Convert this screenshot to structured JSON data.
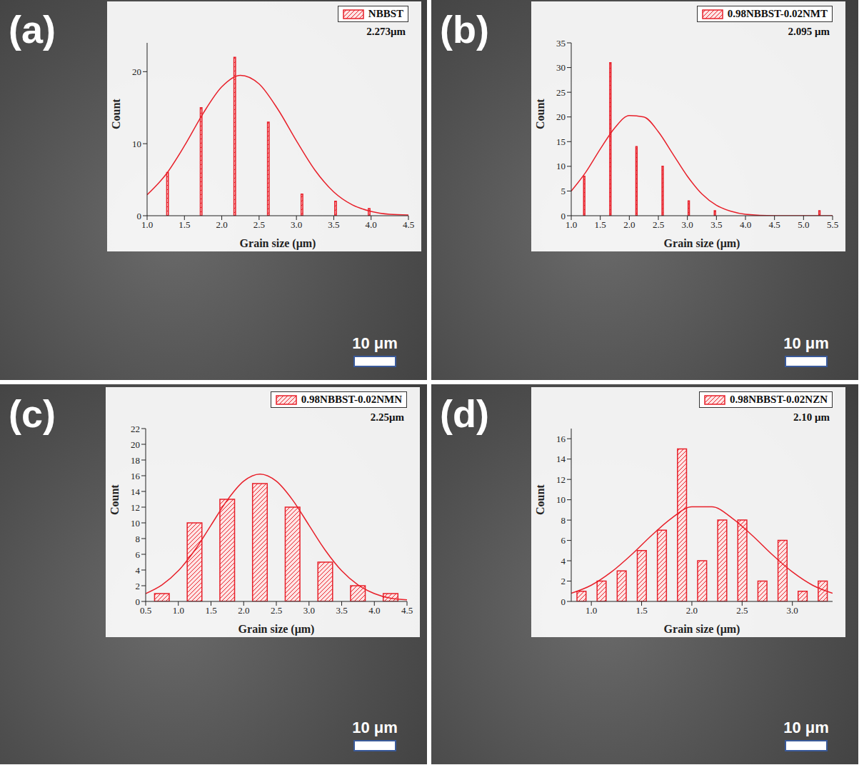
{
  "chart_data": [
    {
      "type": "histogram",
      "title": "(a)",
      "legend": "upper right",
      "annotation": "2.273μm",
      "scale_bar": "10 μm",
      "xlabel": "Grain size (μm)",
      "ylabel": "Count",
      "xlim": [
        1.0,
        4.5
      ],
      "xticks": [
        {
          "value": 1,
          "label": "1.0"
        },
        1.5,
        {
          "value": 2,
          "label": "2.0"
        },
        2.5,
        {
          "value": 3,
          "label": "3.0"
        },
        3.5,
        {
          "value": 4,
          "label": "4.0"
        },
        4.5
      ],
      "ylim": [
        0,
        24
      ],
      "yticks": [
        0,
        10,
        20
      ],
      "bins": [
        1.05,
        1.5,
        1.95,
        2.4,
        2.85,
        3.3,
        3.75,
        4.2
      ],
      "series": [
        {
          "name": "NBBST",
          "type": "bar",
          "color": "#e8202a",
          "values": [
            6,
            15,
            22,
            13,
            3,
            2,
            1
          ]
        },
        {
          "type": "line",
          "color": "#e8202a",
          "x": [
            1.0,
            1.25,
            1.5,
            1.75,
            2.0,
            2.25,
            2.5,
            2.75,
            3.0,
            3.25,
            3.5,
            3.75,
            4.0,
            4.25,
            4.5
          ],
          "values": [
            2.9,
            5.7,
            9.7,
            14.2,
            17.9,
            19.5,
            18.3,
            14.8,
            10.4,
            6.3,
            3.3,
            1.5,
            0.6,
            0.2,
            0.1
          ]
        }
      ]
    },
    {
      "type": "histogram",
      "title": "(b)",
      "legend": "upper right",
      "annotation": "2.095 μm",
      "scale_bar": "10 μm",
      "xlabel": "Grain size (μm)",
      "ylabel": "Count",
      "xlim": [
        1.0,
        5.5
      ],
      "xticks": [
        {
          "value": 1,
          "label": "1.0"
        },
        1.5,
        {
          "value": 2,
          "label": "2.0"
        },
        2.5,
        {
          "value": 3,
          "label": "3.0"
        },
        3.5,
        {
          "value": 4,
          "label": "4.0"
        },
        4.5,
        {
          "value": 5,
          "label": "5.0"
        },
        5.5
      ],
      "ylim": [
        0,
        35
      ],
      "yticks": [
        0,
        5,
        10,
        15,
        20,
        25,
        30,
        35
      ],
      "bins": [
        1.0,
        1.45,
        1.9,
        2.35,
        2.8,
        3.25,
        3.7,
        4.15,
        4.6,
        5.05,
        5.5
      ],
      "series": [
        {
          "name": "0.98NBBST-0.02NMT",
          "type": "bar",
          "color": "#e8202a",
          "values": [
            8,
            31,
            14,
            10,
            3,
            1,
            0,
            0,
            0,
            1
          ]
        },
        {
          "type": "line",
          "color": "#e8202a",
          "x": [
            1.0,
            1.25,
            1.5,
            1.75,
            2.0,
            2.25,
            2.5,
            2.75,
            3.0,
            3.25,
            3.5,
            3.75,
            4.0,
            4.5,
            5.0,
            5.5
          ],
          "values": [
            5.0,
            8.8,
            13.5,
            17.8,
            20.3,
            20.0,
            17.0,
            12.5,
            8.0,
            4.4,
            2.1,
            0.9,
            0.3,
            0,
            0,
            0
          ]
        }
      ]
    },
    {
      "type": "histogram",
      "title": "(c)",
      "legend": "upper right",
      "annotation": "2.25μm",
      "scale_bar": "10 μm",
      "xlabel": "Grain size (μm)",
      "ylabel": "Count",
      "xlim": [
        0.5,
        4.5
      ],
      "xticks": [
        0.5,
        {
          "value": 1,
          "label": "1.0"
        },
        1.5,
        {
          "value": 2,
          "label": "2.0"
        },
        2.5,
        {
          "value": 3,
          "label": "3.0"
        },
        3.5,
        {
          "value": 4,
          "label": "4.0"
        },
        4.5
      ],
      "ylim": [
        0,
        22
      ],
      "yticks": [
        0,
        2,
        4,
        6,
        8,
        10,
        12,
        14,
        16,
        18,
        20,
        22
      ],
      "bins": [
        0.5,
        1.0,
        1.5,
        2.0,
        2.5,
        3.0,
        3.5,
        4.0,
        4.5
      ],
      "series": [
        {
          "name": "0.98NBBST-0.02NMN",
          "type": "bar",
          "color": "#e8202a",
          "values": [
            1,
            10,
            13,
            15,
            12,
            5,
            2,
            1
          ]
        },
        {
          "type": "line",
          "color": "#e8202a",
          "x": [
            0.5,
            0.75,
            1.0,
            1.25,
            1.5,
            1.75,
            2.0,
            2.25,
            2.5,
            2.75,
            3.0,
            3.25,
            3.5,
            3.75,
            4.0,
            4.25,
            4.5
          ],
          "values": [
            1.0,
            2.1,
            3.9,
            6.5,
            9.7,
            12.9,
            15.3,
            16.2,
            15.3,
            12.9,
            9.7,
            6.5,
            3.9,
            2.1,
            1.0,
            0.4,
            0.2
          ]
        }
      ]
    },
    {
      "type": "histogram",
      "title": "(d)",
      "legend": "upper right",
      "annotation": "2.10 μm",
      "scale_bar": "10 μm",
      "xlabel": "Grain size (μm)",
      "ylabel": "Count",
      "xlim": [
        0.8,
        3.4
      ],
      "xticks": [
        {
          "value": 1,
          "label": "1.0"
        },
        1.5,
        {
          "value": 2,
          "label": "2.0"
        },
        2.5,
        {
          "value": 3,
          "label": "3.0"
        }
      ],
      "ylim": [
        0,
        17
      ],
      "yticks": [
        0,
        2,
        4,
        6,
        8,
        10,
        12,
        14,
        16
      ],
      "bins": [
        0.8,
        1.0,
        1.2,
        1.4,
        1.6,
        1.8,
        2.0,
        2.2,
        2.4,
        2.6,
        2.8,
        3.0,
        3.2,
        3.4
      ],
      "series": [
        {
          "name": "0.98NBBST-0.02NZN",
          "type": "bar",
          "color": "#e8202a",
          "values": [
            1,
            2,
            3,
            5,
            7,
            15,
            4,
            8,
            8,
            2,
            6,
            1,
            2
          ]
        },
        {
          "type": "line",
          "color": "#e8202a",
          "x": [
            0.8,
            1.0,
            1.2,
            1.4,
            1.6,
            1.8,
            2.0,
            2.2,
            2.4,
            2.6,
            2.8,
            3.0,
            3.2,
            3.4
          ],
          "values": [
            0.8,
            1.6,
            2.9,
            4.6,
            6.5,
            8.2,
            9.3,
            9.3,
            8.2,
            6.5,
            4.6,
            2.9,
            1.6,
            0.8
          ]
        }
      ]
    }
  ]
}
